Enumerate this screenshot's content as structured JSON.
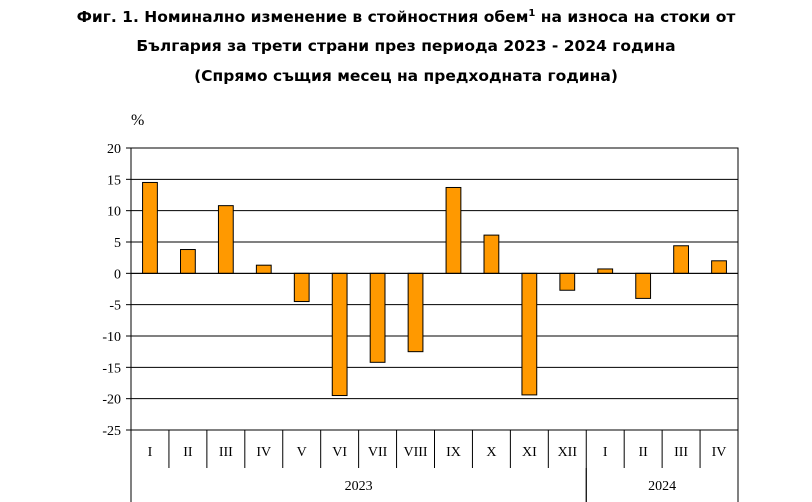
{
  "title": {
    "line1_main": "Фиг. 1. Номинално изменение в стойностния обем",
    "line1_sup": "1",
    "line1_end": " на износа на стоки от",
    "line2": "България за трети страни през периода 2023 - 2024 година",
    "line3": "(Спрямо същия месец на предходната година)"
  },
  "chart_data": {
    "type": "bar",
    "ylabel": "%",
    "ylim": [
      -25,
      20
    ],
    "yticks": [
      20,
      15,
      10,
      5,
      0,
      -5,
      -10,
      -15,
      -20,
      -25
    ],
    "grid": true,
    "bar_color": "#FF9900",
    "categories": [
      "I",
      "II",
      "III",
      "IV",
      "V",
      "VI",
      "VII",
      "VIII",
      "IX",
      "X",
      "XI",
      "XII",
      "I",
      "II",
      "III",
      "IV"
    ],
    "values": [
      14.5,
      3.8,
      10.8,
      1.3,
      -4.5,
      -19.5,
      -14.2,
      -12.5,
      13.7,
      6.1,
      -19.4,
      -2.7,
      0.7,
      -4.0,
      4.4,
      2.0
    ],
    "groups": [
      {
        "label": "2023",
        "count": 12
      },
      {
        "label": "2024",
        "count": 4
      }
    ]
  }
}
